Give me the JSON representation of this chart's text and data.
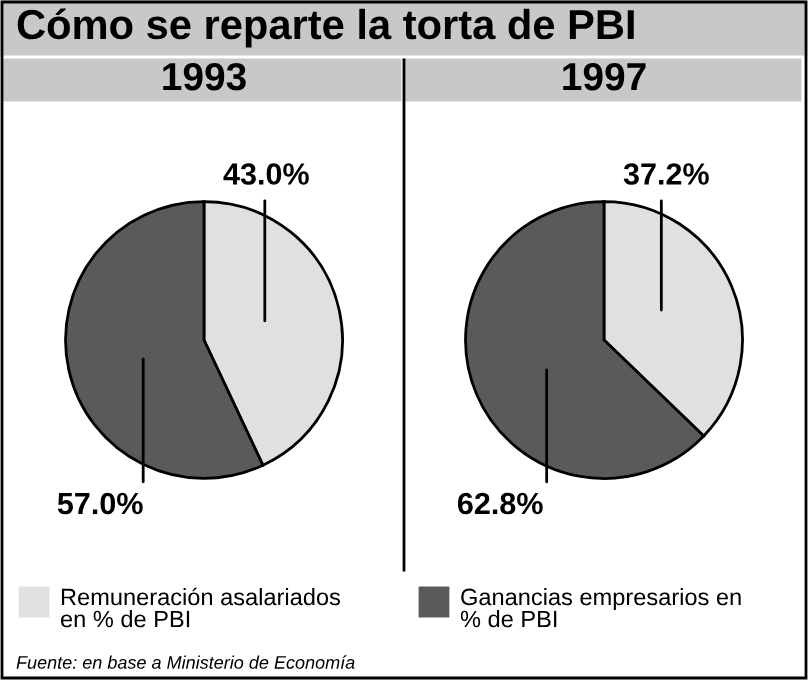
{
  "chart_data": [
    {
      "type": "pie",
      "title": "Cómo se reparte la torta de PBI",
      "subtitle": "1993",
      "categories": [
        "Remuneración asalariados\nen % de PBI",
        "Ganancias empresarios en\n% de PBI"
      ],
      "values": [
        43.0,
        57.0
      ],
      "colors": [
        "#e0e0e0",
        "#5a5a5a"
      ],
      "value_labels": [
        "43.0%",
        "57.0%"
      ],
      "legend": "bottom",
      "annotations": [
        "Fuente: en base a Ministerio de Economía"
      ]
    },
    {
      "type": "pie",
      "subtitle": "1997",
      "values": [
        37.2,
        62.8
      ],
      "colors": [
        "#e0e0e0",
        "#5a5a5a"
      ],
      "value_labels": [
        "37.2%",
        "62.8%"
      ]
    }
  ]
}
